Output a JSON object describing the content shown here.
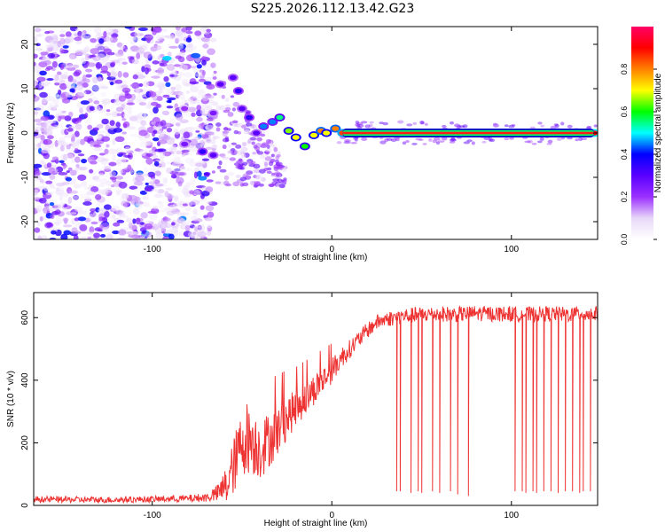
{
  "title": "S225.2026.112.13.42.G23",
  "chart_data": [
    {
      "type": "heatmap",
      "xlabel": "Height of straight line (km)",
      "ylabel": "Frequency (Hz)",
      "xlim": [
        -166,
        148
      ],
      "ylim": [
        -24,
        24
      ],
      "x_ticks": [
        -100,
        0,
        100
      ],
      "y_ticks": [
        -20,
        -10,
        0,
        10,
        20
      ],
      "colorbar": {
        "label": "Normalized spectral amplitude",
        "range": [
          0,
          1
        ],
        "ticks": [
          "0.0",
          "0.2",
          "0.4",
          "0.6",
          "0.8"
        ],
        "colormap": [
          "#ffffff",
          "#e8d8f8",
          "#9b30ff",
          "#5a00ff",
          "#0000ff",
          "#00ffff",
          "#00ff00",
          "#ffff00",
          "#ff8000",
          "#ff0000",
          "#ff0066"
        ]
      },
      "noise_region": {
        "x_from": -166,
        "x_to": -66,
        "freq_from": -24,
        "freq_to": 24,
        "level": 0.15
      },
      "ridge": [
        {
          "x": -66,
          "freq": -5.0,
          "amp": 0.3
        },
        {
          "x": -72,
          "freq": -4.2,
          "amp": 0.35
        },
        {
          "x": -82,
          "freq": -2.5,
          "amp": 0.25
        },
        {
          "x": -66,
          "freq": 4.5,
          "amp": 0.25
        },
        {
          "x": -82,
          "freq": 5.5,
          "amp": 0.2
        },
        {
          "x": -62,
          "freq": 11.0,
          "amp": 0.3
        },
        {
          "x": -55,
          "freq": 12.5,
          "amp": 0.3
        },
        {
          "x": -52,
          "freq": 9.5,
          "amp": 0.35
        },
        {
          "x": -50,
          "freq": 5.5,
          "amp": 0.3
        },
        {
          "x": -46,
          "freq": 3.5,
          "amp": 0.35
        },
        {
          "x": -42,
          "freq": 0.0,
          "amp": 0.3
        },
        {
          "x": -38,
          "freq": 1.5,
          "amp": 0.45
        },
        {
          "x": -33,
          "freq": 2.5,
          "amp": 0.45
        },
        {
          "x": -29,
          "freq": 3.5,
          "amp": 0.55
        },
        {
          "x": -24,
          "freq": 0.5,
          "amp": 0.65
        },
        {
          "x": -20,
          "freq": -1.0,
          "amp": 0.7
        },
        {
          "x": -15,
          "freq": -3.0,
          "amp": 0.6
        },
        {
          "x": -10,
          "freq": -0.5,
          "amp": 0.7
        },
        {
          "x": -6,
          "freq": 0.5,
          "amp": 0.8
        },
        {
          "x": -3,
          "freq": 0.0,
          "amp": 0.7
        },
        {
          "x": 2,
          "freq": 1.0,
          "amp": 0.8
        },
        {
          "x": 6,
          "freq": 0.0,
          "amp": 0.85
        },
        {
          "x": 20,
          "freq": 0.0,
          "amp": 0.9
        },
        {
          "x": 40,
          "freq": 0.0,
          "amp": 0.95
        },
        {
          "x": 70,
          "freq": 0.0,
          "amp": 0.9
        },
        {
          "x": 100,
          "freq": 0.0,
          "amp": 0.95
        },
        {
          "x": 146,
          "freq": 0.0,
          "amp": 0.9
        }
      ]
    },
    {
      "type": "line",
      "xlabel": "Height of straight line (km)",
      "ylabel": "SNR (10 * v/v)",
      "xlim": [
        -166,
        148
      ],
      "ylim": [
        0,
        680
      ],
      "x_ticks": [
        -100,
        0,
        100
      ],
      "y_ticks": [
        0,
        200,
        400,
        600
      ],
      "series": [
        {
          "color": "#ee3333",
          "x": [
            -166,
            -140,
            -120,
            -100,
            -80,
            -70,
            -63,
            -58,
            -55,
            -52,
            -50,
            -48,
            -45,
            -42,
            -40,
            -35,
            -30,
            -25,
            -20,
            -15,
            -10,
            -5,
            0,
            5,
            10,
            15,
            20,
            25,
            30,
            35,
            40,
            50,
            60,
            70,
            80,
            90,
            100,
            110,
            120,
            130,
            140,
            148
          ],
          "y": [
            20,
            18,
            18,
            20,
            22,
            25,
            40,
            70,
            120,
            170,
            200,
            220,
            210,
            190,
            180,
            210,
            240,
            280,
            310,
            340,
            370,
            400,
            430,
            470,
            500,
            530,
            560,
            585,
            595,
            600,
            605,
            610,
            612,
            610,
            614,
            612,
            612,
            610,
            612,
            610,
            612,
            612
          ],
          "spread": [
            10,
            10,
            10,
            10,
            12,
            14,
            30,
            70,
            90,
            100,
            110,
            120,
            110,
            100,
            100,
            90,
            80,
            70,
            60,
            55,
            50,
            45,
            40,
            35,
            30,
            28,
            26,
            25,
            25,
            25,
            25,
            25,
            25,
            25,
            25,
            25,
            25,
            25,
            25,
            25,
            25,
            25
          ]
        }
      ],
      "dropouts": [
        {
          "x": 36,
          "y": 45
        },
        {
          "x": 38,
          "y": 45
        },
        {
          "x": 44,
          "y": 40
        },
        {
          "x": 48,
          "y": 45
        },
        {
          "x": 50,
          "y": 40
        },
        {
          "x": 56,
          "y": 45
        },
        {
          "x": 60,
          "y": 40
        },
        {
          "x": 66,
          "y": 45
        },
        {
          "x": 70,
          "y": 35
        },
        {
          "x": 76,
          "y": 30
        },
        {
          "x": 102,
          "y": 45
        },
        {
          "x": 106,
          "y": 45
        },
        {
          "x": 108,
          "y": 40
        },
        {
          "x": 112,
          "y": 45
        },
        {
          "x": 114,
          "y": 40
        },
        {
          "x": 118,
          "y": 45
        },
        {
          "x": 122,
          "y": 45
        },
        {
          "x": 126,
          "y": 40
        },
        {
          "x": 130,
          "y": 45
        },
        {
          "x": 134,
          "y": 45
        },
        {
          "x": 138,
          "y": 40
        },
        {
          "x": 140,
          "y": 45
        },
        {
          "x": 144,
          "y": 45
        }
      ]
    }
  ]
}
